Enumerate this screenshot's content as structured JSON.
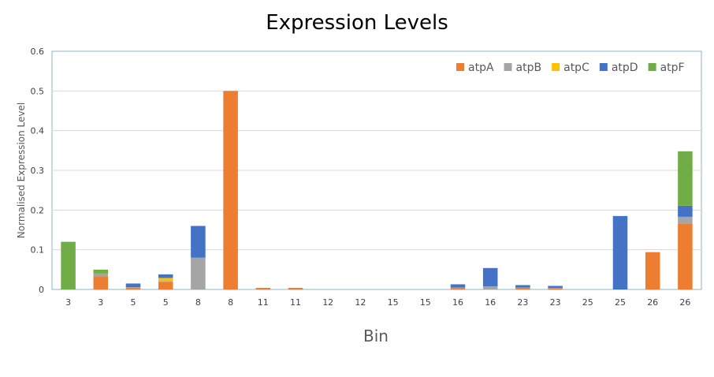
{
  "chart_data": {
    "type": "bar",
    "stacked": true,
    "title": "Expression Levels",
    "xlabel": "Bin",
    "ylabel": "Normalised Expression Level",
    "ylim": [
      0,
      0.6
    ],
    "yticks": [
      "0",
      "0.1",
      "0.2",
      "0.3",
      "0.4",
      "0.5",
      "0.6"
    ],
    "categories": [
      "3",
      "3",
      "5",
      "5",
      "8",
      "8",
      "11",
      "11",
      "12",
      "12",
      "15",
      "15",
      "16",
      "16",
      "23",
      "23",
      "25",
      "25",
      "26",
      "26"
    ],
    "series": [
      {
        "name": "atpA",
        "color": "#ED7D31",
        "values": [
          0,
          0.033,
          0.003,
          0.018,
          0,
          0.5,
          0.004,
          0.004,
          0,
          0,
          0,
          0,
          0.003,
          0,
          0.003,
          0.002,
          0,
          0,
          0.094,
          0.165
        ]
      },
      {
        "name": "atpB",
        "color": "#A5A5A5",
        "values": [
          0,
          0.007,
          0.003,
          0.003,
          0.08,
          0,
          0,
          0,
          0,
          0,
          0,
          0,
          0.002,
          0.008,
          0.002,
          0.002,
          0,
          0,
          0,
          0.018
        ]
      },
      {
        "name": "atpC",
        "color": "#FFC000",
        "values": [
          0,
          0,
          0,
          0.008,
          0,
          0,
          0,
          0,
          0,
          0,
          0,
          0,
          0,
          0,
          0,
          0,
          0,
          0,
          0,
          0
        ]
      },
      {
        "name": "atpD",
        "color": "#4472C4",
        "values": [
          0,
          0,
          0.009,
          0.009,
          0.08,
          0,
          0,
          0,
          0,
          0,
          0,
          0,
          0.008,
          0.046,
          0.006,
          0.005,
          0,
          0.185,
          0,
          0.028
        ]
      },
      {
        "name": "atpF",
        "color": "#70AD47",
        "values": [
          0.12,
          0.01,
          0,
          0,
          0,
          0,
          0,
          0,
          0,
          0,
          0,
          0,
          0,
          0,
          0,
          0,
          0,
          0,
          0,
          0.137
        ]
      }
    ],
    "grid": true,
    "legend_position": "top-right"
  }
}
